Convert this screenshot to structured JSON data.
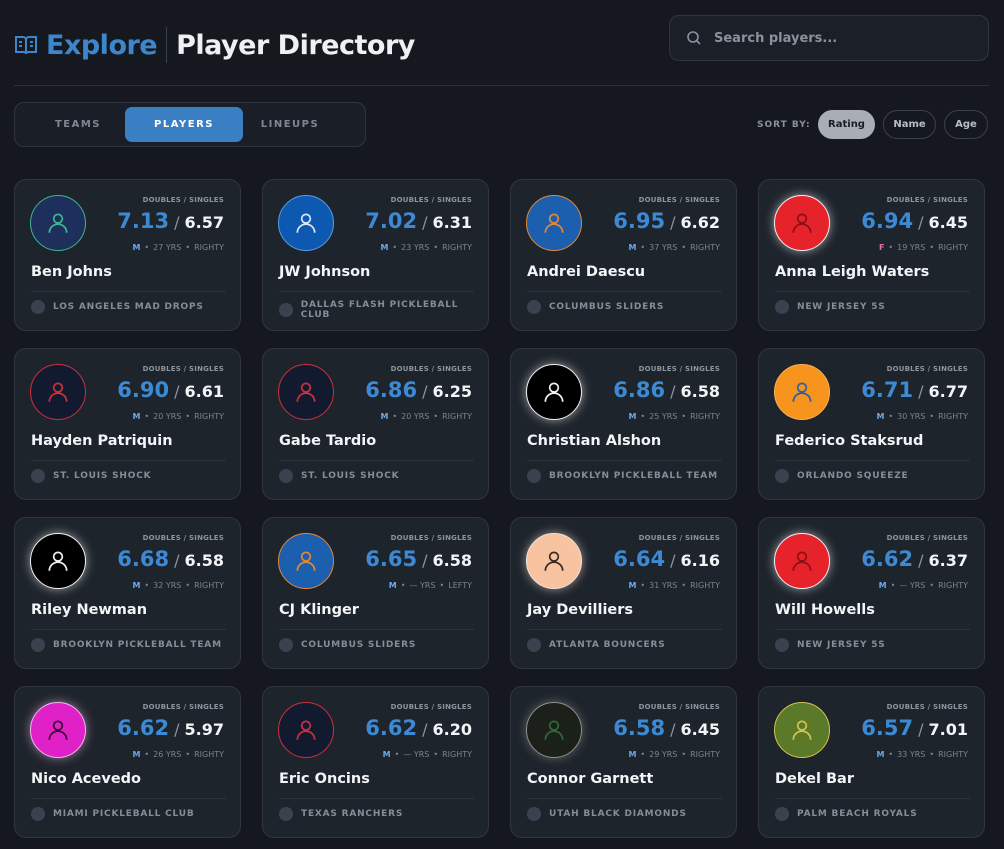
{
  "header": {
    "section": "Explore",
    "title": "Player Directory"
  },
  "search": {
    "placeholder": "Search players..."
  },
  "tabs": {
    "items": [
      "TEAMS",
      "PLAYERS",
      "LINEUPS"
    ],
    "active": 1
  },
  "sort": {
    "label": "SORT BY:",
    "options": [
      "Rating",
      "Name",
      "Age"
    ],
    "active": 0
  },
  "rating_label": "DOUBLES / SINGLES",
  "players": [
    {
      "name": "Ben Johns",
      "doubles": "7.13",
      "singles": "6.57",
      "gender": "M",
      "age": "27 YRS",
      "hand": "RIGHTY",
      "team": "LOS ANGELES MAD DROPS",
      "avatar": "#1e2f5c",
      "border": "#3fb58f",
      "icon": "#3fb58f"
    },
    {
      "name": "JW Johnson",
      "doubles": "7.02",
      "singles": "6.31",
      "gender": "M",
      "age": "23 YRS",
      "hand": "RIGHTY",
      "team": "DALLAS FLASH PICKLEBALL CLUB",
      "avatar": "#0d58b0",
      "border": "#5c9be0",
      "icon": "#d8e6f7"
    },
    {
      "name": "Andrei Daescu",
      "doubles": "6.95",
      "singles": "6.62",
      "gender": "M",
      "age": "37 YRS",
      "hand": "RIGHTY",
      "team": "COLUMBUS SLIDERS",
      "avatar": "#1b5fae",
      "border": "#e0893a",
      "icon": "#e0893a"
    },
    {
      "name": "Anna Leigh Waters",
      "doubles": "6.94",
      "singles": "6.45",
      "gender": "F",
      "age": "19 YRS",
      "hand": "RIGHTY",
      "team": "NEW JERSEY 5S",
      "avatar": "#e6222b",
      "border": "#f1f1f1",
      "icon": "#8a1016"
    },
    {
      "name": "Hayden Patriquin",
      "doubles": "6.90",
      "singles": "6.61",
      "gender": "M",
      "age": "20 YRS",
      "hand": "RIGHTY",
      "team": "ST. LOUIS SHOCK",
      "avatar": "#121a30",
      "border": "#cf2f3d",
      "icon": "#cf2f3d"
    },
    {
      "name": "Gabe Tardio",
      "doubles": "6.86",
      "singles": "6.25",
      "gender": "M",
      "age": "20 YRS",
      "hand": "RIGHTY",
      "team": "ST. LOUIS SHOCK",
      "avatar": "#121a30",
      "border": "#cf2f3d",
      "icon": "#cf2f3d"
    },
    {
      "name": "Christian Alshon",
      "doubles": "6.86",
      "singles": "6.58",
      "gender": "M",
      "age": "25 YRS",
      "hand": "RIGHTY",
      "team": "BROOKLYN PICKLEBALL TEAM",
      "avatar": "#000000",
      "border": "#f1f1f1",
      "icon": "#f1f1f1"
    },
    {
      "name": "Federico Staksrud",
      "doubles": "6.71",
      "singles": "6.77",
      "gender": "M",
      "age": "30 YRS",
      "hand": "RIGHTY",
      "team": "ORLANDO SQUEEZE",
      "avatar": "#f7941d",
      "border": "#f7b25a",
      "icon": "#2d5fa8"
    },
    {
      "name": "Riley Newman",
      "doubles": "6.68",
      "singles": "6.58",
      "gender": "M",
      "age": "32 YRS",
      "hand": "RIGHTY",
      "team": "BROOKLYN PICKLEBALL TEAM",
      "avatar": "#000000",
      "border": "#f1f1f1",
      "icon": "#f1f1f1"
    },
    {
      "name": "CJ Klinger",
      "doubles": "6.65",
      "singles": "6.58",
      "gender": "M",
      "age": "— YRS",
      "hand": "LEFTY",
      "team": "COLUMBUS SLIDERS",
      "avatar": "#1b5fae",
      "border": "#e0893a",
      "icon": "#e0893a"
    },
    {
      "name": "Jay Devilliers",
      "doubles": "6.64",
      "singles": "6.16",
      "gender": "M",
      "age": "31 YRS",
      "hand": "RIGHTY",
      "team": "ATLANTA BOUNCERS",
      "avatar": "#f8c3a0",
      "border": "#f3e2d6",
      "icon": "#3a2a24"
    },
    {
      "name": "Will Howells",
      "doubles": "6.62",
      "singles": "6.37",
      "gender": "M",
      "age": "— YRS",
      "hand": "RIGHTY",
      "team": "NEW JERSEY 5S",
      "avatar": "#e6222b",
      "border": "#f1f1f1",
      "icon": "#8a1016"
    },
    {
      "name": "Nico Acevedo",
      "doubles": "6.62",
      "singles": "5.97",
      "gender": "M",
      "age": "26 YRS",
      "hand": "RIGHTY",
      "team": "MIAMI PICKLEBALL CLUB",
      "avatar": "#e021c8",
      "border": "#f1b8ea",
      "icon": "#3a0a33"
    },
    {
      "name": "Eric Oncins",
      "doubles": "6.62",
      "singles": "6.20",
      "gender": "M",
      "age": "— YRS",
      "hand": "RIGHTY",
      "team": "TEXAS RANCHERS",
      "avatar": "#121a30",
      "border": "#cf2f3d",
      "icon": "#cf2f3d"
    },
    {
      "name": "Connor Garnett",
      "doubles": "6.58",
      "singles": "6.45",
      "gender": "M",
      "age": "29 YRS",
      "hand": "RIGHTY",
      "team": "UTAH BLACK DIAMONDS",
      "avatar": "#1b201b",
      "border": "#8a8f8a",
      "icon": "#2f6a35"
    },
    {
      "name": "Dekel Bar",
      "doubles": "6.57",
      "singles": "7.01",
      "gender": "M",
      "age": "33 YRS",
      "hand": "RIGHTY",
      "team": "PALM BEACH ROYALS",
      "avatar": "#5a7a2a",
      "border": "#d8c24c",
      "icon": "#d8c24c"
    }
  ]
}
